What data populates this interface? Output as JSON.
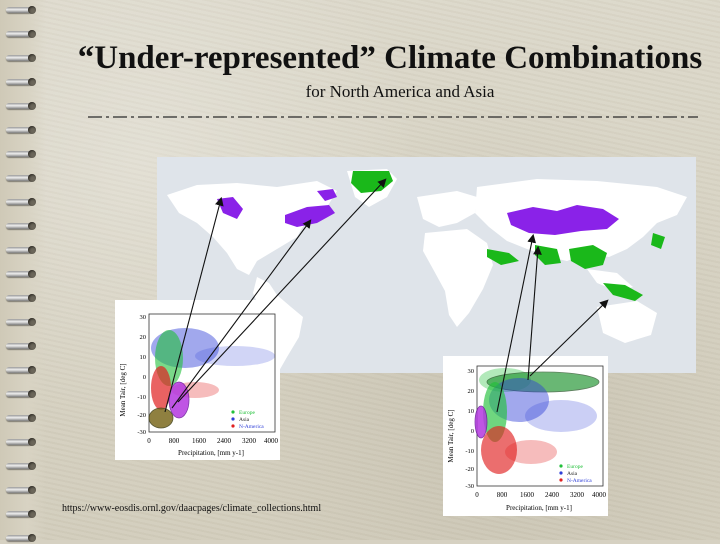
{
  "slide": {
    "title": "“Under-represented” Climate Combinations",
    "subtitle": "for North America and Asia",
    "source_url": "https://www-eosdis.ornl.gov/daacpages/climate_collections.html"
  },
  "plots": {
    "ylabel": "Mean Tair, [deg C]",
    "xlabel": "Precipitation, [mm y-1]",
    "left": {
      "yticks": [
        "30",
        "20",
        "10",
        "0",
        "-10",
        "-20",
        "-30"
      ],
      "xticks": [
        "0",
        "800",
        "1600",
        "2400",
        "3200",
        "4000"
      ]
    },
    "right": {
      "yticks": [
        "30",
        "20",
        "10",
        "0",
        "-10",
        "-20",
        "-30"
      ],
      "xticks": [
        "0",
        "800",
        "1600",
        "2400",
        "3200",
        "4000"
      ]
    },
    "legend": [
      "Europe",
      "Asia",
      "N-America"
    ]
  },
  "colors": {
    "europe": "#22c03a",
    "asia": "#2f3fd8",
    "n_america": "#e02020",
    "purple_region": "#8a22e8",
    "green_region": "#1ab81a"
  }
}
